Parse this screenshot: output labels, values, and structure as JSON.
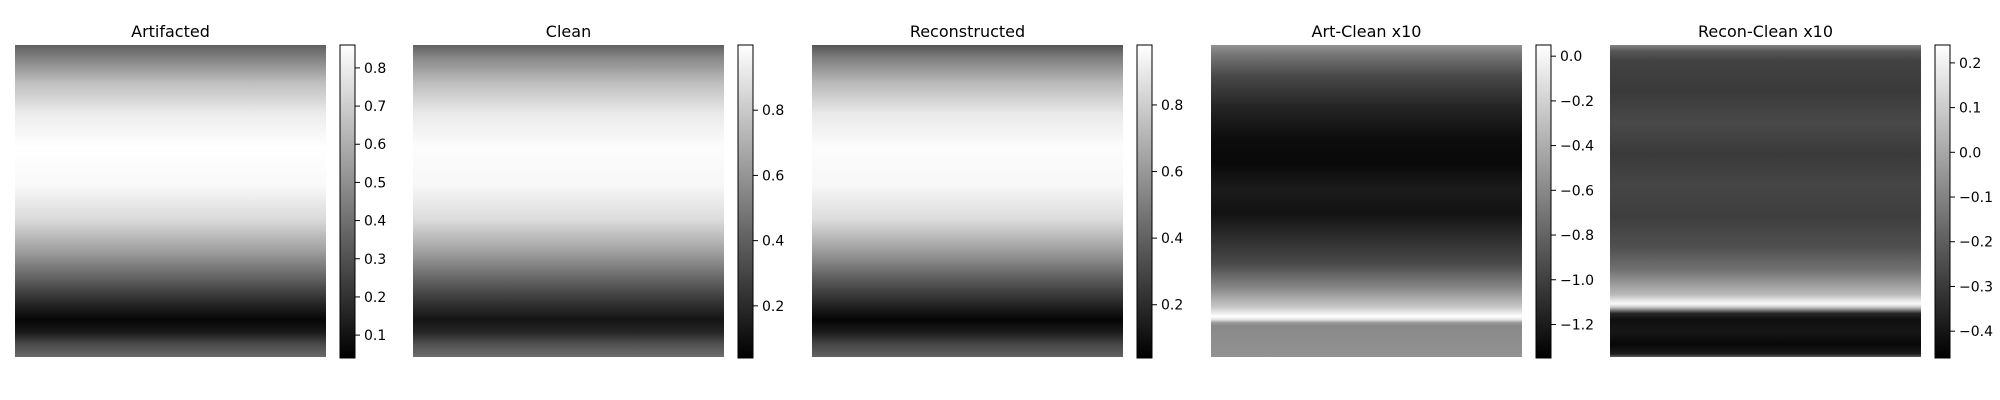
{
  "chart_data": [
    {
      "type": "heatmap",
      "title": "Artifacted",
      "colormap": "gray",
      "colorbar": {
        "ticks": [
          0.1,
          0.2,
          0.3,
          0.4,
          0.5,
          0.6,
          0.7,
          0.8
        ],
        "range": [
          0.04,
          0.86
        ]
      },
      "row_profile": {
        "rows": [
          0.0,
          0.04,
          0.12,
          0.22,
          0.33,
          0.45,
          0.56,
          0.66,
          0.75,
          0.83,
          0.88,
          0.92,
          0.96,
          1.0
        ],
        "values": [
          0.35,
          0.45,
          0.65,
          0.8,
          0.86,
          0.84,
          0.74,
          0.55,
          0.35,
          0.16,
          0.06,
          0.12,
          0.28,
          0.38
        ]
      },
      "rows_text": []
    },
    {
      "type": "heatmap",
      "title": "Clean",
      "colormap": "gray",
      "colorbar": {
        "ticks": [
          0.2,
          0.4,
          0.6,
          0.8
        ],
        "range": [
          0.04,
          1.0
        ]
      },
      "row_profile": {
        "rows": [
          0.0,
          0.04,
          0.12,
          0.22,
          0.33,
          0.45,
          0.56,
          0.66,
          0.75,
          0.83,
          0.88,
          0.92,
          0.96,
          1.0
        ],
        "values": [
          0.4,
          0.55,
          0.75,
          0.92,
          0.99,
          0.97,
          0.87,
          0.65,
          0.42,
          0.22,
          0.12,
          0.18,
          0.35,
          0.45
        ]
      }
    },
    {
      "type": "heatmap",
      "title": "Reconstructed",
      "colormap": "gray",
      "colorbar": {
        "ticks": [
          0.2,
          0.4,
          0.6,
          0.8
        ],
        "range": [
          0.04,
          0.98
        ]
      },
      "row_profile": {
        "rows": [
          0.0,
          0.04,
          0.12,
          0.22,
          0.33,
          0.45,
          0.56,
          0.66,
          0.75,
          0.83,
          0.88,
          0.92,
          0.96,
          1.0
        ],
        "values": [
          0.35,
          0.5,
          0.72,
          0.9,
          0.97,
          0.95,
          0.85,
          0.62,
          0.38,
          0.18,
          0.06,
          0.14,
          0.3,
          0.4
        ]
      }
    },
    {
      "type": "heatmap",
      "title": "Art-Clean x10",
      "colormap": "gray",
      "colorbar": {
        "ticks": [
          0.0,
          -0.2,
          -0.4,
          -0.6,
          -0.8,
          -1.0,
          -1.2
        ],
        "range": [
          -1.35,
          0.05
        ]
      },
      "row_profile": {
        "rows": [
          0.0,
          0.03,
          0.1,
          0.2,
          0.3,
          0.38,
          0.46,
          0.54,
          0.62,
          0.7,
          0.78,
          0.84,
          0.86,
          0.87,
          0.88,
          0.89,
          0.9,
          0.93,
          1.0
        ],
        "values": [
          -0.55,
          -0.7,
          -0.95,
          -1.15,
          -1.28,
          -1.3,
          -1.2,
          -1.25,
          -1.1,
          -0.95,
          -0.6,
          -0.25,
          -0.05,
          0.05,
          -0.1,
          -0.5,
          -0.6,
          -0.58,
          -0.55
        ]
      }
    },
    {
      "type": "heatmap",
      "title": "Recon-Clean x10",
      "colormap": "gray",
      "colorbar": {
        "ticks": [
          0.2,
          0.1,
          0.0,
          -0.1,
          -0.2,
          -0.3,
          -0.4
        ],
        "range": [
          -0.46,
          0.24
        ]
      },
      "row_profile": {
        "rows": [
          0.0,
          0.02,
          0.05,
          0.15,
          0.25,
          0.35,
          0.45,
          0.55,
          0.65,
          0.72,
          0.76,
          0.8,
          0.82,
          0.83,
          0.84,
          0.86,
          0.88,
          0.92,
          0.96,
          0.99,
          1.0
        ],
        "values": [
          -0.1,
          -0.22,
          -0.28,
          -0.3,
          -0.26,
          -0.3,
          -0.27,
          -0.29,
          -0.24,
          -0.15,
          -0.05,
          0.05,
          0.18,
          0.22,
          0.1,
          -0.35,
          -0.42,
          -0.4,
          -0.44,
          -0.38,
          -0.2
        ]
      }
    }
  ]
}
